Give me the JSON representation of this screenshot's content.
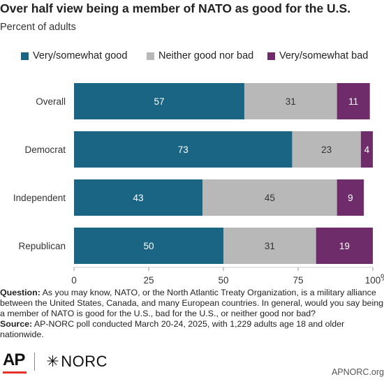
{
  "header": {
    "title": "Over half view being a member of NATO as good for the U.S.",
    "subtitle": "Percent of adults"
  },
  "chart_data": {
    "type": "bar",
    "orientation": "horizontal",
    "stacked": true,
    "categories": [
      "Overall",
      "Democrat",
      "Independent",
      "Republican"
    ],
    "series": [
      {
        "name": "Very/somewhat good",
        "color": "#1a6584",
        "values": [
          57,
          73,
          43,
          50
        ]
      },
      {
        "name": "Neither good nor bad",
        "color": "#b8b8b8",
        "values": [
          31,
          23,
          45,
          31
        ]
      },
      {
        "name": "Very/somewhat bad",
        "color": "#6e2c6b",
        "values": [
          11,
          4,
          9,
          19
        ]
      }
    ],
    "xlim": [
      0,
      100
    ],
    "xticks": [
      "0",
      "25",
      "50",
      "75",
      "100"
    ],
    "xtick_suffix": "%",
    "legend_position": "top",
    "grid": false
  },
  "notes": {
    "question_label": "Question:",
    "question_text": "As you may know, NATO, or the North Atlantic Treaty Organization, is a military alliance between the United States, Canada, and many European countries. In general, would you say being a member of NATO is good for the U.S., bad for the U.S., or neither good nor bad?",
    "source_label": "Source:",
    "source_text": "AP-NORC poll conducted March 20-24, 2025, with 1,229 adults age 18 and older nationwide."
  },
  "footer": {
    "ap_logo": "AP",
    "norc_logo": "NORC",
    "site": "APNORC.org"
  }
}
